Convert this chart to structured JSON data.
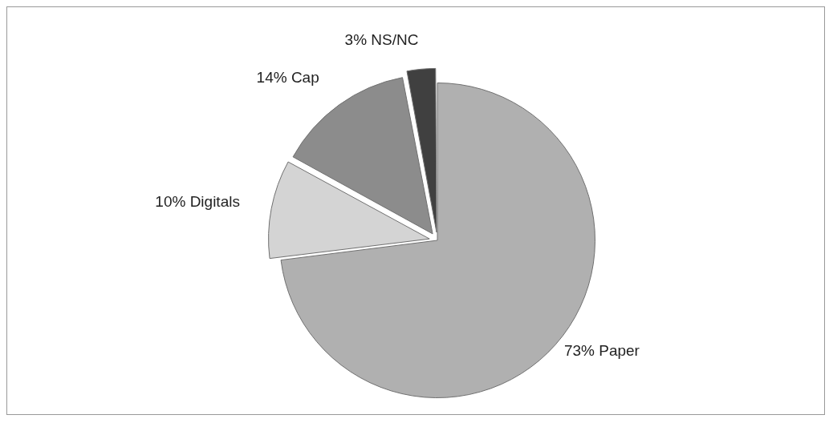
{
  "chart_data": {
    "type": "pie",
    "categories": [
      "Paper",
      "Digitals",
      "Cap",
      "NS/NC"
    ],
    "values": [
      73,
      10,
      14,
      3
    ],
    "colors": [
      "#b0b0b0",
      "#d4d4d4",
      "#8c8c8c",
      "#404040"
    ],
    "value_labels": [
      "73%",
      "10%",
      "14%",
      "3%"
    ],
    "legend": false
  }
}
